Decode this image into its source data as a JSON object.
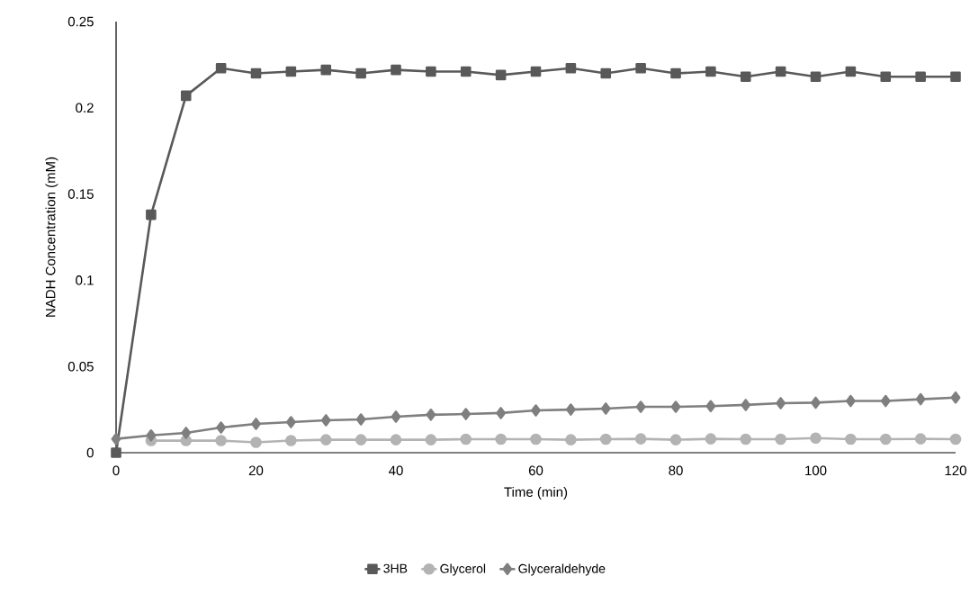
{
  "chart_data": {
    "type": "line",
    "xlabel": "Time (min)",
    "ylabel": "NADH Concentration (mM)",
    "x": [
      0,
      5,
      10,
      15,
      20,
      25,
      30,
      35,
      40,
      45,
      50,
      55,
      60,
      65,
      70,
      75,
      80,
      85,
      90,
      95,
      100,
      105,
      110,
      115,
      120
    ],
    "series": [
      {
        "name": "3HB",
        "color": "#595959",
        "marker": "square",
        "values": [
          0,
          0.138,
          0.207,
          0.223,
          0.22,
          0.221,
          0.222,
          0.22,
          0.222,
          0.221,
          0.221,
          0.219,
          0.221,
          0.223,
          0.22,
          0.223,
          0.22,
          0.221,
          0.218,
          0.221,
          0.218,
          0.221,
          0.218,
          0.218,
          0.218
        ]
      },
      {
        "name": "Glycerol",
        "color": "#b3b3b3",
        "marker": "circle",
        "values": [
          null,
          0.007,
          0.007,
          0.007,
          0.006,
          0.007,
          0.0075,
          0.0075,
          0.0075,
          0.0075,
          0.0078,
          0.0078,
          0.0078,
          0.0075,
          0.0078,
          0.008,
          0.0075,
          0.008,
          0.0078,
          0.0078,
          0.0085,
          0.0078,
          0.0078,
          0.008,
          0.0078
        ]
      },
      {
        "name": "Glyceraldehyde",
        "color": "#7f7f7f",
        "marker": "diamond",
        "values": [
          0.008,
          0.01,
          0.0115,
          0.0146,
          0.0167,
          0.0177,
          0.0188,
          0.0193,
          0.0209,
          0.022,
          0.0224,
          0.023,
          0.0245,
          0.025,
          0.0256,
          0.0266,
          0.0266,
          0.027,
          0.0277,
          0.0287,
          0.029,
          0.03,
          0.03,
          0.031,
          0.032
        ]
      }
    ],
    "xlim": [
      0,
      120
    ],
    "xticks": [
      0,
      20,
      40,
      60,
      80,
      100,
      120
    ],
    "ylim": [
      0,
      0.25
    ],
    "yticks": [
      0,
      0.05,
      0.1,
      0.15,
      0.2,
      0.25
    ],
    "legend": "bottom",
    "grid": false
  }
}
